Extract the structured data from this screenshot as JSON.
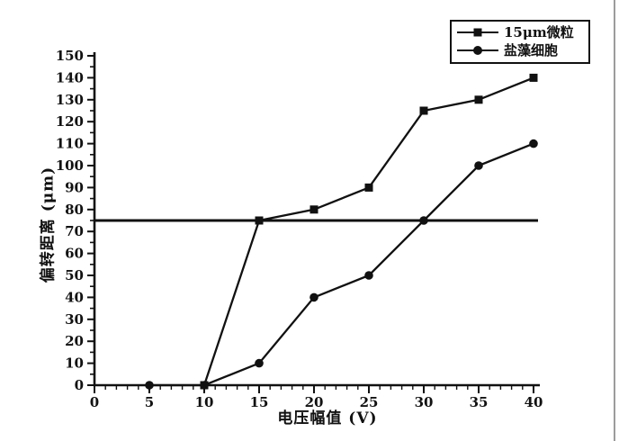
{
  "figure": {
    "background": "#ffffff",
    "ink_color": "#111111",
    "scan_edge_color": "#9c9c9c"
  },
  "chart_data": {
    "type": "line",
    "title": "",
    "xlabel": "电压幅值 (V)",
    "ylabel": "偏转距离 (μm)",
    "xlim": [
      0,
      40
    ],
    "ylim": [
      0,
      150
    ],
    "x_ticks": [
      0,
      5,
      10,
      15,
      20,
      25,
      30,
      35,
      40
    ],
    "y_ticks": [
      0,
      10,
      20,
      30,
      40,
      50,
      60,
      70,
      80,
      90,
      100,
      110,
      120,
      130,
      140,
      150
    ],
    "x_minor_step": 1,
    "y_minor_step": 5,
    "grid": false,
    "legend_position": "top-right",
    "reference_line_y": 75,
    "series": [
      {
        "name": "15μm微粒",
        "marker": "square",
        "x": [
          10,
          15,
          20,
          25,
          30,
          35,
          40
        ],
        "y": [
          0,
          75,
          80,
          90,
          125,
          130,
          140
        ]
      },
      {
        "name": "盐藻细胞",
        "marker": "circle",
        "x": [
          5,
          10,
          15,
          20,
          25,
          30,
          35,
          40
        ],
        "y": [
          0,
          0,
          10,
          40,
          50,
          75,
          100,
          110
        ]
      }
    ]
  }
}
